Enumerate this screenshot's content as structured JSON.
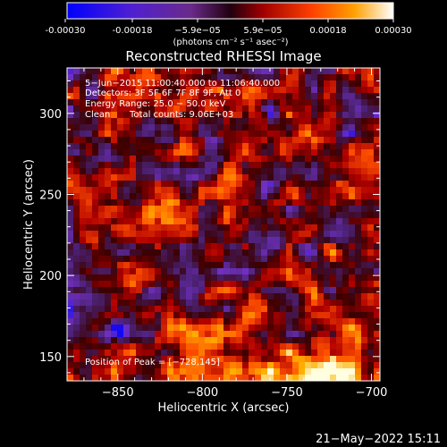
{
  "colorbar": {
    "ticks": [
      "-0.00030",
      "-0.00018",
      "−5.9e−05",
      "5.9e−05",
      "0.00018",
      "0.00030"
    ],
    "unit_label": "(photons cm⁻² s⁻¹ asec⁻²)",
    "range": [
      -0.0003,
      0.0003
    ]
  },
  "chart_data": {
    "type": "heatmap",
    "title": "Reconstructed RHESSI Image",
    "xlabel": "Heliocentric X (arcsec)",
    "ylabel": "Heliocentric Y (arcsec)",
    "xlim": [
      -880,
      -695
    ],
    "ylim": [
      135,
      328
    ],
    "xticks": [
      -850,
      -800,
      -750,
      -700
    ],
    "yticks": [
      150,
      200,
      250,
      300
    ],
    "xtick_labels": [
      "−850",
      "−800",
      "−750",
      "−700"
    ],
    "ytick_labels": [
      "150",
      "200",
      "250",
      "300"
    ],
    "colormap": [
      "#0000ff",
      "#7030c0",
      "#4a2070",
      "#3a0000",
      "#b00000",
      "#ff5000",
      "#ffb000",
      "#ffffe0"
    ],
    "peak": [
      -728,
      145
    ],
    "annotations": {
      "time_range": "5−Jun−2015 11:00:40.000 to 11:06:40.000",
      "detectors": "Detectors: 3F 5F 6F 7F 8F 9F, Att 0",
      "energy": "Energy Range: 25.0 − 50.0 keV",
      "method": "Clean",
      "counts": "Total counts: 9.06E+03",
      "peak_label": "Position of Peak = [−728,145]"
    }
  },
  "footer": {
    "date": "21−May−2022 15:11"
  }
}
